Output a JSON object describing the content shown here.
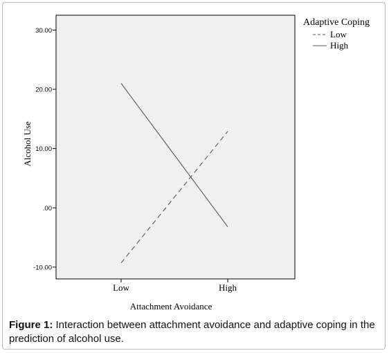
{
  "chart_data": {
    "type": "line",
    "categories": [
      "Low",
      "High"
    ],
    "series": [
      {
        "name": "Low",
        "values": [
          -9.3,
          12.9
        ],
        "dash": "dashed"
      },
      {
        "name": "High",
        "values": [
          21.0,
          -3.2
        ],
        "dash": "solid"
      }
    ],
    "xlabel": "Attachment Avoidance",
    "ylabel": "Alcohol Use",
    "ylim": [
      -12,
      32.5
    ],
    "yticks": [
      30,
      20,
      10,
      0,
      -10
    ],
    "ytick_labels": [
      "30.00",
      "20.00",
      "10.00",
      ".00",
      "-10.00"
    ],
    "legend_title": "Adaptive Coping",
    "legend_placement": "top-right",
    "grid": false,
    "colors": {
      "plot_background": "#f0f0f0",
      "line": "#555555",
      "axis": "#000000"
    }
  },
  "caption": {
    "label": "Figure 1:",
    "text": " Interaction between attachment avoidance and adaptive coping in the prediction of alcohol use."
  }
}
